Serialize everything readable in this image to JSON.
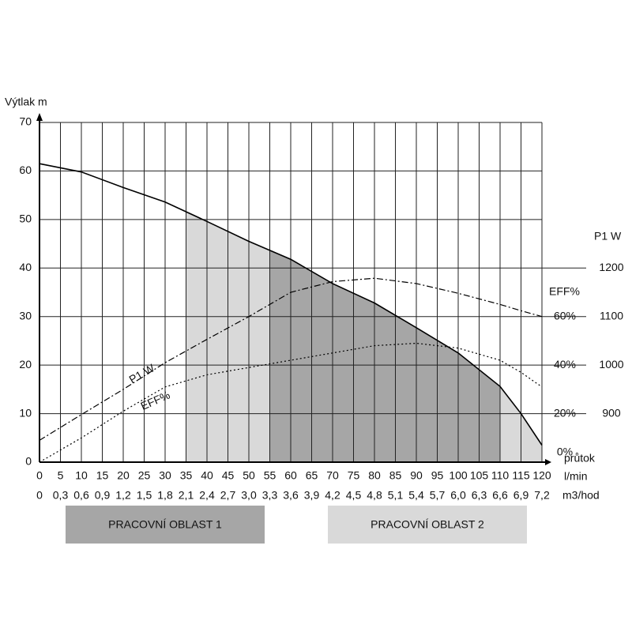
{
  "chart_data": {
    "type": "line",
    "ylabel": "Výtlak m",
    "xlabel": "průtok",
    "xunit": "l/min",
    "x2unit": "m3/hod",
    "y2label": "P1 W",
    "y3label": "EFF%",
    "x": [
      0,
      10,
      20,
      30,
      40,
      50,
      60,
      70,
      80,
      90,
      100,
      110,
      115,
      120
    ],
    "xlim": [
      0,
      120
    ],
    "xticks": [
      0,
      5,
      10,
      15,
      20,
      25,
      30,
      35,
      40,
      45,
      50,
      55,
      60,
      65,
      70,
      75,
      80,
      85,
      90,
      95,
      100,
      105,
      110,
      115,
      120
    ],
    "x2lim": [
      0,
      7.2
    ],
    "x2ticks": [
      0,
      {
        "value": 0.3,
        "label": "0,3"
      },
      {
        "value": 0.6,
        "label": "0,6"
      },
      {
        "value": 0.9,
        "label": "0,9"
      },
      {
        "value": 1.2,
        "label": "1,2"
      },
      {
        "value": 1.5,
        "label": "1,5"
      },
      {
        "value": 1.8,
        "label": "1,8"
      },
      {
        "value": 2.1,
        "label": "2,1"
      },
      {
        "value": 2.4,
        "label": "2,4"
      },
      {
        "value": 2.7,
        "label": "2,7"
      },
      {
        "value": 3.0,
        "label": "3,0"
      },
      {
        "value": 3.3,
        "label": "3,3"
      },
      {
        "value": 3.6,
        "label": "3,6"
      },
      {
        "value": 3.9,
        "label": "3,9"
      },
      {
        "value": 4.2,
        "label": "4,2"
      },
      {
        "value": 4.5,
        "label": "4,5"
      },
      {
        "value": 4.8,
        "label": "4,8"
      },
      {
        "value": 5.1,
        "label": "5,1"
      },
      {
        "value": 5.4,
        "label": "5,4"
      },
      {
        "value": 5.7,
        "label": "5,7"
      },
      {
        "value": 6.0,
        "label": "6,0"
      },
      {
        "value": 6.3,
        "label": "6,3"
      },
      {
        "value": 6.6,
        "label": "6,6"
      },
      {
        "value": 6.9,
        "label": "6,9"
      },
      {
        "value": 7.2,
        "label": "7,2"
      }
    ],
    "ylim": [
      0,
      70
    ],
    "yticks": [
      0,
      10,
      20,
      30,
      40,
      50,
      60,
      70
    ],
    "y2lim": [
      800,
      1500
    ],
    "y2ticks": [
      900,
      1000,
      1100,
      1200
    ],
    "y3lim": [
      0,
      140
    ],
    "y3ticks": [
      {
        "value": 0,
        "label": "0%"
      },
      {
        "value": 20,
        "label": "20%"
      },
      {
        "value": 40,
        "label": "40%"
      },
      {
        "value": 60,
        "label": "60%"
      }
    ],
    "grid": true,
    "series": [
      {
        "color": "#000000",
        "style": "solid",
        "values": [
          61.5,
          59.8,
          56.6,
          53.6,
          49.6,
          45.5,
          41.8,
          36.8,
          32.8,
          27.7,
          22.5,
          15.6,
          10,
          3.5
        ]
      },
      {
        "name": "P1 W",
        "axis": "y2",
        "color": "#000000",
        "style": "dashdot",
        "values": [
          845,
          898,
          950,
          1005,
          1053,
          1100,
          1150,
          1172,
          1179,
          1168,
          1148,
          1125,
          1112,
          1100
        ]
      },
      {
        "name": "EFF%",
        "axis": "y3",
        "color": "#000000",
        "style": "dotted",
        "values": [
          0,
          10,
          21,
          31,
          36,
          39,
          42,
          45,
          48,
          49,
          47,
          42,
          37,
          31
        ]
      }
    ],
    "zones": [
      {
        "label": "PRACOVNÍ OBLAST 1",
        "x": [
          55,
          110
        ],
        "color": "#a6a6a6"
      },
      {
        "label": "PRACOVNÍ OBLAST 2",
        "x": [
          35,
          120
        ],
        "color": "#d9d9d9"
      }
    ]
  }
}
